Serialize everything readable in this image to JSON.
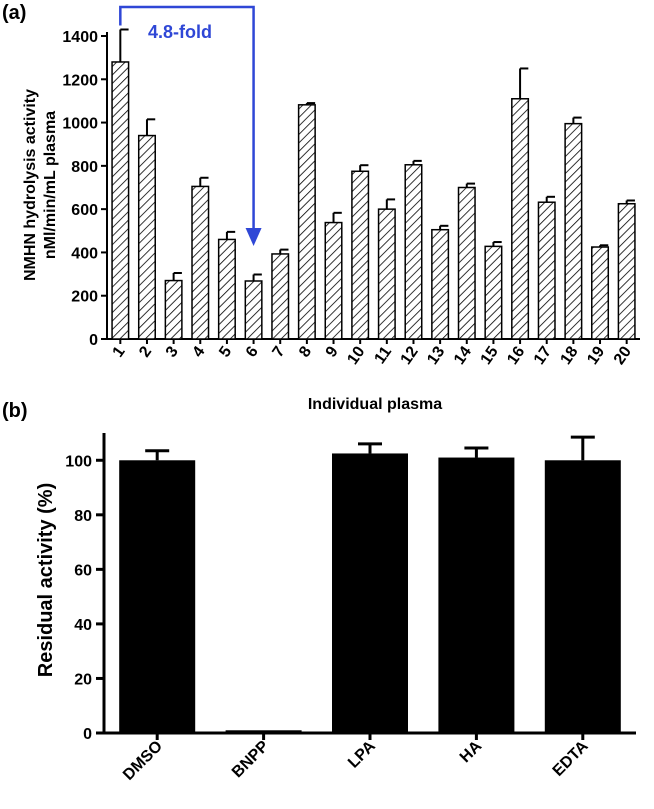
{
  "chart_data": [
    {
      "panel_label": "(a)",
      "type": "bar",
      "categories": [
        "1",
        "2",
        "3",
        "4",
        "5",
        "6",
        "7",
        "8",
        "9",
        "10",
        "11",
        "12",
        "13",
        "14",
        "15",
        "16",
        "17",
        "18",
        "19",
        "20"
      ],
      "values": [
        1280,
        940,
        270,
        705,
        460,
        268,
        393,
        1082,
        538,
        775,
        600,
        805,
        505,
        700,
        428,
        1110,
        632,
        995,
        425,
        625
      ],
      "errors": [
        150,
        75,
        35,
        40,
        35,
        30,
        20,
        8,
        45,
        28,
        45,
        18,
        18,
        18,
        20,
        140,
        25,
        28,
        8,
        15
      ],
      "ylim": [
        0,
        1400
      ],
      "yticks": [
        0,
        200,
        400,
        600,
        800,
        1000,
        1200,
        1400
      ],
      "ylabel_line1": "NMHN hydrolysis activity",
      "ylabel_line2": "nMl/min/mL plasma",
      "xlabel": "Individual plasma",
      "bar_fill": "hatched",
      "annotation": {
        "text": "4.8-fold",
        "from_category": "1",
        "to_category": "6",
        "color": "#2f47d6"
      }
    },
    {
      "panel_label": "(b)",
      "type": "bar",
      "categories": [
        "DMSO",
        "BNPP",
        "LPA",
        "HA",
        "EDTA"
      ],
      "values": [
        100,
        1,
        102.5,
        101,
        100
      ],
      "errors": [
        3.5,
        0,
        3.5,
        3.5,
        8.5
      ],
      "ylim": [
        0,
        110
      ],
      "yticks": [
        0,
        20,
        40,
        60,
        80,
        100
      ],
      "ylabel": "Residual activity (%)",
      "bar_color": "#000000"
    }
  ]
}
